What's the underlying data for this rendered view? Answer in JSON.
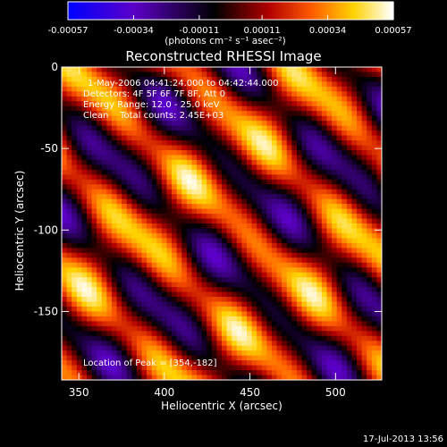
{
  "chart_data": {
    "type": "heatmap",
    "title": "Reconstructed RHESSI Image",
    "xlabel": "Heliocentric X (arcsec)",
    "ylabel": "Heliocentric Y (arcsec)",
    "xlim": [
      340,
      527
    ],
    "ylim": [
      -192,
      0
    ],
    "x_ticks": [
      350,
      400,
      450,
      500
    ],
    "y_ticks": [
      0,
      -50,
      -100,
      -150
    ],
    "colorbar": {
      "range": [
        -0.00057,
        0.00057
      ],
      "ticks": [
        "-0.00057",
        "-0.00034",
        "-0.00011",
        "0.00011",
        "0.00034",
        "0.00057"
      ],
      "tick_values": [
        -0.00057,
        -0.00034,
        -0.00011,
        0.00011,
        0.00034,
        0.00057
      ],
      "unit_label": "(photons cm⁻² s⁻¹ asec⁻²)",
      "colormap": [
        "#0000ff",
        "#5c00c8",
        "#000000",
        "#b40000",
        "#ff5a00",
        "#ffd200",
        "#ffffff"
      ]
    },
    "annotations": [
      "1-May-2006 04:41:24.000 to 04:42:44.000",
      "Detectors: 4F 5F 6F 7F 8F, Att 0",
      "Energy Range: 12.0 - 25.0 keV",
      "Clean    Total counts: 2.45E+03"
    ],
    "peak_label": "Location of Peak = [354,-182]",
    "peak": {
      "x": 354,
      "y": -182
    },
    "stripe_direction": "diagonal, rising to upper-right",
    "grid": false
  },
  "footer": {
    "timestamp": "17-Jul-2013 13:56"
  }
}
